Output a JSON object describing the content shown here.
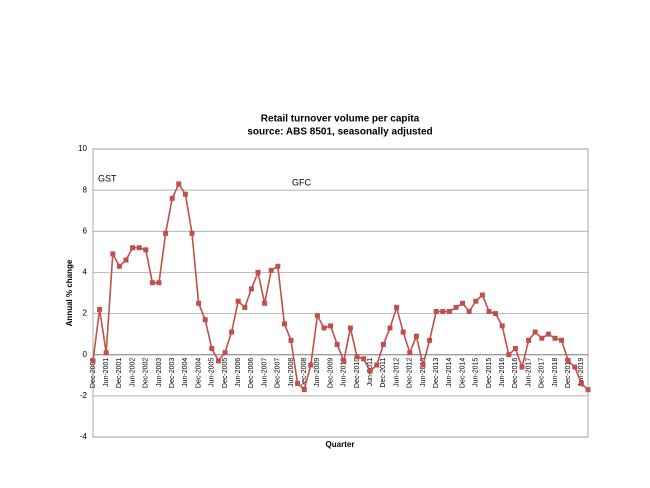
{
  "chart_data": {
    "type": "line",
    "title": "Retail turnover volume per capita",
    "subtitle": "source: ABS 8501, seasonally adjusted",
    "x_label": "Quarter",
    "y_label": "Annual % change",
    "annotations": [
      "GST",
      "GFC"
    ],
    "categories": [
      "Dec-2000",
      null,
      "Jun-2001",
      null,
      "Dec-2001",
      null,
      "Jun-2002",
      null,
      "Dec-2002",
      null,
      "Jun-2003",
      null,
      "Dec-2003",
      null,
      "Jun-2004",
      null,
      "Dec-2004",
      null,
      "Jun-2005",
      null,
      "Dec-2005",
      null,
      "Jun-2006",
      null,
      "Dec-2006",
      null,
      "Jun-2007",
      null,
      "Dec-2007",
      null,
      "Jun-2008",
      null,
      "Dec-2008",
      null,
      "Jun-2009",
      null,
      "Dec-2009",
      null,
      "Jun-2010",
      null,
      "Dec-2010",
      null,
      "Jun-2011",
      null,
      "Dec-2011",
      null,
      "Jun-2012",
      null,
      "Dec-2012",
      null,
      "Jun-2013",
      null,
      "Dec-2013",
      null,
      "Jun-2014",
      null,
      "Dec-2014",
      null,
      "Jun-2015",
      null,
      "Dec-2015",
      null,
      "Jun-2016",
      null,
      "Dec-2016",
      null,
      "Jun-2017",
      null,
      "Dec-2017",
      null,
      "Jun-2018",
      null,
      "Dec-2018",
      null,
      "Jun-2019",
      null
    ],
    "series": [
      {
        "name": "Annual % change",
        "color": "#c0504d",
        "values": [
          -0.3,
          2.2,
          0.1,
          4.9,
          4.3,
          4.6,
          5.2,
          5.2,
          5.1,
          3.5,
          3.5,
          5.9,
          7.6,
          8.3,
          7.8,
          5.9,
          2.5,
          1.7,
          0.3,
          -0.3,
          0.1,
          1.1,
          2.6,
          2.3,
          3.2,
          4.0,
          2.5,
          4.1,
          4.3,
          1.5,
          0.7,
          -1.4,
          -1.7,
          -0.5,
          1.9,
          1.3,
          1.4,
          0.5,
          -0.3,
          1.3,
          -0.1,
          -0.2,
          -0.8,
          -0.5,
          0.5,
          1.3,
          2.3,
          1.1,
          0.1,
          0.9,
          -0.5,
          0.7,
          2.1,
          2.1,
          2.1,
          2.3,
          2.5,
          2.1,
          2.6,
          2.9,
          2.1,
          2.0,
          1.4,
          0.0,
          0.3,
          -0.6,
          0.7,
          1.1,
          0.8,
          1.0,
          0.8,
          0.7,
          -0.3,
          -0.6,
          -1.4,
          -1.7
        ]
      }
    ],
    "ylim": [
      -4,
      10
    ],
    "yticks": [
      -4,
      -2,
      0,
      2,
      4,
      6,
      8,
      10
    ],
    "grid": true
  }
}
